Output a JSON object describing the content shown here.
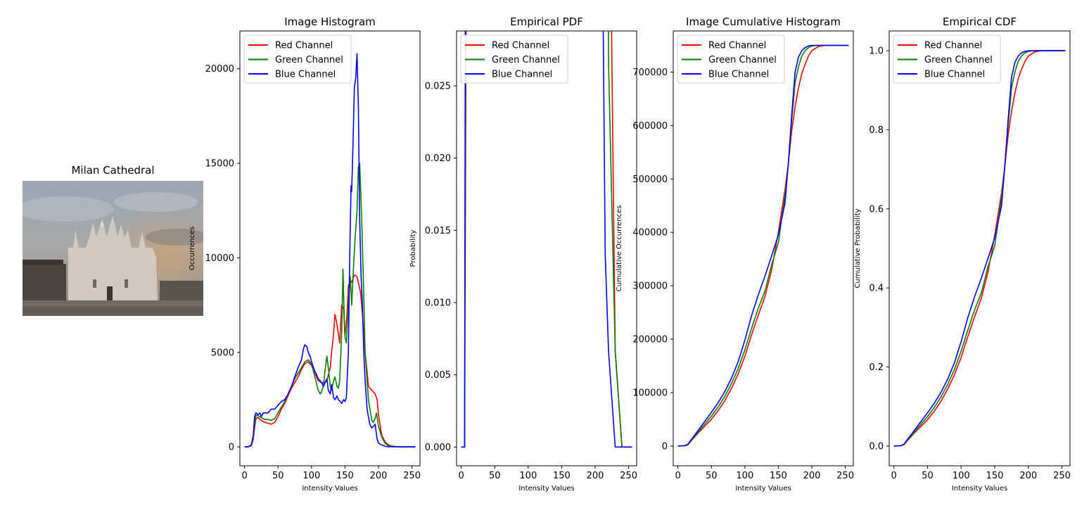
{
  "photo": {
    "title": "Milan Cathedral"
  },
  "chart_data": [
    {
      "type": "line",
      "title": "Image Histogram",
      "xlabel": "Intensity Values",
      "ylabel": "Occurrences",
      "xlim": [
        -7,
        262
      ],
      "ylim": [
        -1000,
        22000
      ],
      "xticks": [
        0,
        50,
        100,
        150,
        200,
        250
      ],
      "yticks": [
        0,
        5000,
        10000,
        15000,
        20000
      ],
      "grid": false,
      "legend": "top-left",
      "series": [
        {
          "name": "Red Channel",
          "color": "#ff0000",
          "x": [
            0,
            5,
            10,
            13,
            15,
            17,
            20,
            25,
            30,
            35,
            40,
            45,
            50,
            55,
            60,
            65,
            70,
            75,
            80,
            85,
            90,
            95,
            100,
            105,
            110,
            115,
            120,
            123,
            125,
            128,
            130,
            133,
            135,
            138,
            140,
            142,
            145,
            148,
            150,
            153,
            155,
            158,
            160,
            163,
            165,
            168,
            170,
            173,
            175,
            178,
            180,
            183,
            185,
            190,
            195,
            198,
            200,
            203,
            205,
            210,
            215,
            220,
            225,
            230,
            240,
            250,
            255
          ],
          "y": [
            0,
            0,
            50,
            400,
            1000,
            1500,
            1550,
            1400,
            1300,
            1250,
            1200,
            1300,
            1600,
            2000,
            2300,
            2700,
            3100,
            3400,
            3700,
            4100,
            4400,
            4500,
            4300,
            3900,
            3500,
            3400,
            3400,
            3500,
            3800,
            4200,
            5000,
            6000,
            7000,
            6500,
            6000,
            5500,
            7500,
            7300,
            5900,
            7000,
            8500,
            8800,
            8700,
            9000,
            9100,
            9000,
            8700,
            8200,
            7500,
            6000,
            5000,
            4000,
            3200,
            3000,
            2800,
            2500,
            1700,
            1000,
            600,
            250,
            100,
            40,
            20,
            5,
            0,
            0,
            0
          ]
        },
        {
          "name": "Green Channel",
          "color": "#008000",
          "x": [
            0,
            5,
            10,
            13,
            15,
            17,
            20,
            25,
            30,
            35,
            40,
            45,
            50,
            55,
            60,
            65,
            70,
            75,
            80,
            85,
            90,
            95,
            100,
            105,
            110,
            113,
            115,
            118,
            120,
            123,
            125,
            128,
            130,
            133,
            135,
            138,
            140,
            142,
            145,
            147,
            149,
            150,
            152,
            155,
            158,
            160,
            163,
            165,
            168,
            170,
            172,
            175,
            178,
            180,
            185,
            190,
            192,
            195,
            197,
            200,
            205,
            210,
            215,
            220,
            230,
            240,
            255
          ],
          "y": [
            0,
            0,
            80,
            500,
            1200,
            1650,
            1650,
            1550,
            1450,
            1450,
            1400,
            1500,
            1800,
            2100,
            2400,
            2800,
            3200,
            3600,
            3900,
            4200,
            4500,
            4600,
            4400,
            3700,
            3000,
            2800,
            2900,
            3300,
            4000,
            4800,
            4200,
            3200,
            3000,
            3500,
            3700,
            3200,
            3100,
            3500,
            6000,
            9400,
            6500,
            5800,
            5500,
            7500,
            9000,
            7500,
            9700,
            11000,
            12500,
            14800,
            15000,
            12000,
            8000,
            5000,
            2500,
            1400,
            1300,
            1500,
            1800,
            1100,
            500,
            180,
            60,
            20,
            5,
            0,
            0
          ]
        },
        {
          "name": "Blue Channel",
          "color": "#0000ff",
          "x": [
            0,
            5,
            10,
            13,
            15,
            17,
            20,
            23,
            25,
            28,
            30,
            35,
            40,
            45,
            50,
            55,
            60,
            65,
            70,
            75,
            80,
            85,
            88,
            90,
            93,
            95,
            98,
            100,
            103,
            105,
            108,
            110,
            113,
            115,
            118,
            120,
            123,
            125,
            128,
            130,
            133,
            135,
            138,
            140,
            143,
            145,
            148,
            150,
            152,
            155,
            157,
            159,
            160,
            162,
            164,
            166,
            168,
            170,
            172,
            174,
            176,
            178,
            180,
            183,
            185,
            187,
            190,
            193,
            195,
            198,
            200,
            205,
            210,
            215,
            220,
            230,
            240,
            255
          ],
          "y": [
            0,
            0,
            100,
            600,
            1600,
            1800,
            1700,
            1800,
            1600,
            1800,
            1800,
            1800,
            2000,
            2000,
            2200,
            2400,
            2500,
            2800,
            3200,
            3700,
            4200,
            4600,
            5200,
            5400,
            5300,
            5000,
            4800,
            4500,
            4200,
            4000,
            3800,
            3600,
            3500,
            3400,
            3200,
            3400,
            3600,
            3000,
            2800,
            3300,
            2600,
            2500,
            2700,
            2500,
            2400,
            2300,
            2500,
            2400,
            2600,
            5000,
            10000,
            13800,
            13500,
            16000,
            19000,
            19500,
            20800,
            18000,
            12000,
            9000,
            7500,
            5000,
            3500,
            2000,
            1600,
            1200,
            1000,
            1100,
            1200,
            400,
            200,
            100,
            30,
            10,
            5,
            0,
            0,
            0
          ]
        }
      ]
    },
    {
      "type": "line",
      "title": "Empirical PDF",
      "xlabel": "Intensity Values",
      "ylabel": "Probability",
      "xlim": [
        -7,
        262
      ],
      "ylim": [
        -0.0013,
        0.0288
      ],
      "xticks": [
        0,
        50,
        100,
        150,
        200,
        250
      ],
      "yticks": [
        0.0,
        0.005,
        0.01,
        0.015,
        0.02,
        0.025
      ],
      "yticklabels": [
        "0.000",
        "0.005",
        "0.010",
        "0.015",
        "0.020",
        "0.025"
      ],
      "grid": false,
      "legend": "top-left",
      "scale_from_histogram": 0.001333,
      "series_names": [
        "Red Channel",
        "Green Channel",
        "Blue Channel"
      ]
    },
    {
      "type": "line",
      "title": "Image Cumulative Histogram",
      "xlabel": "Intensity Values",
      "ylabel": "Cumulative Occurrences",
      "xlim": [
        -7,
        262
      ],
      "ylim": [
        -37000,
        777000
      ],
      "xticks": [
        0,
        50,
        100,
        150,
        200,
        250
      ],
      "yticks": [
        0,
        100000,
        200000,
        300000,
        400000,
        500000,
        600000,
        700000
      ],
      "grid": false,
      "legend": "top-left",
      "series": [
        {
          "name": "Red Channel",
          "color": "#ff0000",
          "x": [
            0,
            10,
            15,
            20,
            30,
            40,
            50,
            60,
            70,
            80,
            90,
            100,
            110,
            120,
            130,
            140,
            150,
            160,
            165,
            170,
            175,
            180,
            185,
            190,
            195,
            200,
            210,
            220,
            255
          ],
          "y": [
            0,
            500,
            2500,
            10000,
            24000,
            37000,
            50000,
            66000,
            85000,
            108000,
            135000,
            168000,
            208000,
            245000,
            280000,
            330000,
            400000,
            480000,
            530000,
            590000,
            635000,
            670000,
            697000,
            715000,
            730000,
            740000,
            748000,
            750000,
            750000
          ]
        },
        {
          "name": "Green Channel",
          "color": "#008000",
          "x": [
            0,
            10,
            15,
            20,
            30,
            40,
            50,
            60,
            70,
            80,
            90,
            100,
            110,
            120,
            130,
            140,
            150,
            160,
            165,
            170,
            175,
            180,
            185,
            190,
            195,
            200,
            210,
            255
          ],
          "y": [
            0,
            600,
            3000,
            11000,
            26000,
            41000,
            56000,
            73000,
            93000,
            117000,
            145000,
            180000,
            220000,
            258000,
            290000,
            340000,
            380000,
            470000,
            530000,
            610000,
            680000,
            710000,
            730000,
            740000,
            746000,
            749000,
            750000,
            750000
          ]
        },
        {
          "name": "Blue Channel",
          "color": "#0000ff",
          "x": [
            0,
            10,
            15,
            20,
            30,
            40,
            50,
            60,
            70,
            80,
            90,
            100,
            110,
            120,
            130,
            140,
            150,
            160,
            165,
            170,
            175,
            180,
            185,
            190,
            195,
            200,
            210,
            255
          ],
          "y": [
            0,
            700,
            3500,
            12000,
            29000,
            46000,
            63000,
            81000,
            102000,
            127000,
            158000,
            198000,
            244000,
            283000,
            318000,
            356000,
            395000,
            455000,
            530000,
            620000,
            700000,
            728000,
            740000,
            746000,
            749000,
            750000,
            750000,
            750000
          ]
        }
      ]
    },
    {
      "type": "line",
      "title": "Empirical CDF",
      "xlabel": "Intensity Values",
      "ylabel": "Cumulative Probability",
      "xlim": [
        -7,
        262
      ],
      "ylim": [
        -0.05,
        1.05
      ],
      "xticks": [
        0,
        50,
        100,
        150,
        200,
        250
      ],
      "yticks": [
        0.0,
        0.2,
        0.4,
        0.6,
        0.8,
        1.0
      ],
      "yticklabels": [
        "0.0",
        "0.2",
        "0.4",
        "0.6",
        "0.8",
        "1.0"
      ],
      "grid": false,
      "legend": "top-left",
      "scale_from_cumulative": 1.3333e-06,
      "series_names": [
        "Red Channel",
        "Green Channel",
        "Blue Channel"
      ]
    }
  ]
}
